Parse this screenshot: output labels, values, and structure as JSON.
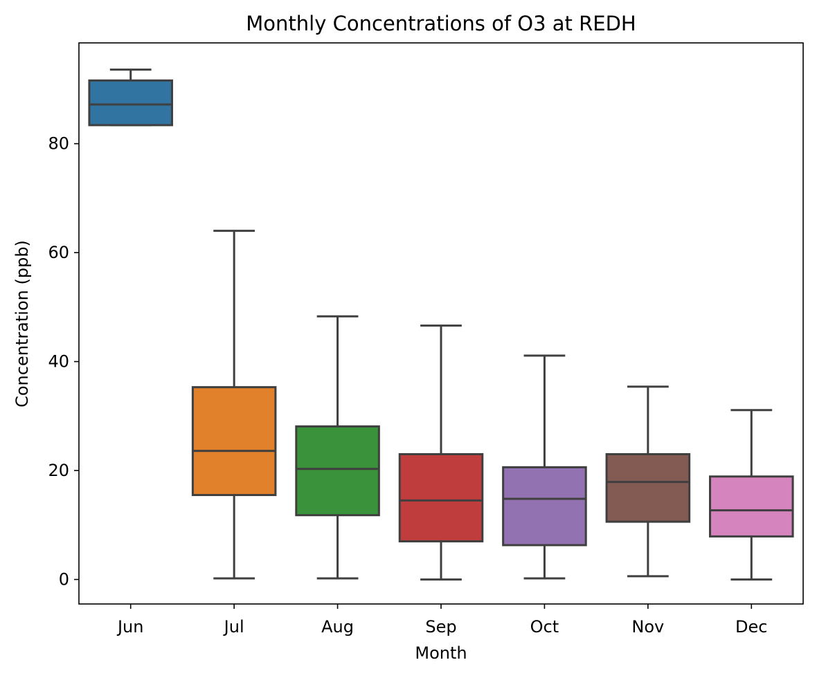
{
  "chart_data": {
    "type": "box",
    "title": "Monthly Concentrations of O3 at REDH",
    "xlabel": "Month",
    "ylabel": "Concentration (ppb)",
    "ylim": [
      -4.5,
      98.5
    ],
    "yticks": [
      0,
      20,
      40,
      60,
      80
    ],
    "grid": false,
    "legend": "none",
    "categories": [
      "Jun",
      "Jul",
      "Aug",
      "Sep",
      "Oct",
      "Nov",
      "Dec"
    ],
    "boxes": [
      {
        "category": "Jun",
        "whisker_low": 83.4,
        "q1": 83.4,
        "median": 87.2,
        "q3": 91.6,
        "whisker_high": 93.6,
        "color": "#3274a1"
      },
      {
        "category": "Jul",
        "whisker_low": 0.2,
        "q1": 15.5,
        "median": 23.6,
        "q3": 35.3,
        "whisker_high": 64.0,
        "color": "#e1812c"
      },
      {
        "category": "Aug",
        "whisker_low": 0.2,
        "q1": 11.8,
        "median": 20.3,
        "q3": 28.1,
        "whisker_high": 48.3,
        "color": "#3a923a"
      },
      {
        "category": "Sep",
        "whisker_low": 0.0,
        "q1": 7.0,
        "median": 14.5,
        "q3": 23.0,
        "whisker_high": 46.6,
        "color": "#c03d3e"
      },
      {
        "category": "Oct",
        "whisker_low": 0.2,
        "q1": 6.3,
        "median": 14.8,
        "q3": 20.6,
        "whisker_high": 41.1,
        "color": "#9372b2"
      },
      {
        "category": "Nov",
        "whisker_low": 0.6,
        "q1": 10.6,
        "median": 17.9,
        "q3": 23.0,
        "whisker_high": 35.4,
        "color": "#845b53"
      },
      {
        "category": "Dec",
        "whisker_low": 0.0,
        "q1": 7.9,
        "median": 12.7,
        "q3": 18.9,
        "whisker_high": 31.1,
        "color": "#d684bd"
      }
    ],
    "line_color": "#3f3f3f"
  }
}
